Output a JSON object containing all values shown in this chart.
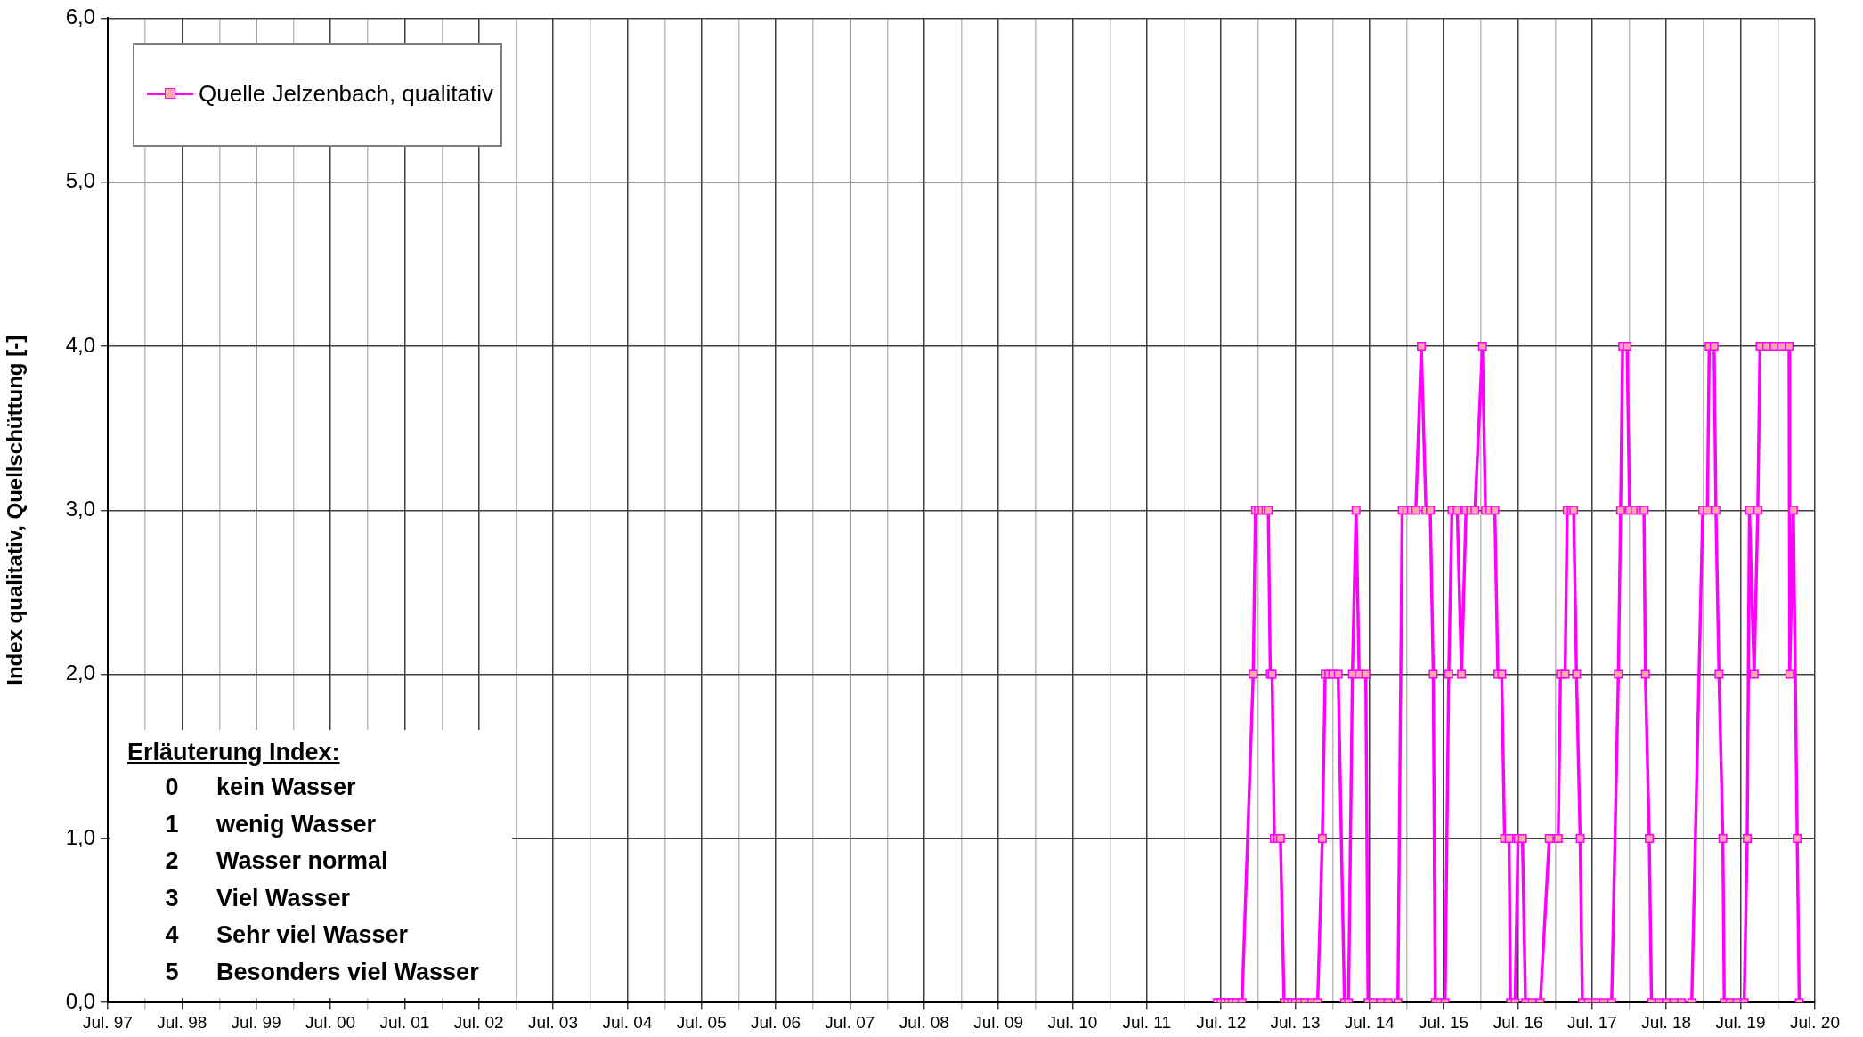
{
  "chart_data": {
    "type": "line",
    "ylabel": "Index qualitativ, Quellschüttung [-]",
    "x": [
      "2012-06-13",
      "2012-07-01",
      "2012-07-19",
      "2012-08-07",
      "2012-08-25",
      "2012-09-13",
      "2012-10-12",
      "2012-12-06",
      "2012-12-17",
      "2013-01-01",
      "2013-01-19",
      "2013-02-07",
      "2013-02-18",
      "2013-02-28",
      "2013-03-09",
      "2013-03-20",
      "2013-04-05",
      "2013-04-19",
      "2013-05-07",
      "2013-05-25",
      "2013-06-13",
      "2013-07-01",
      "2013-07-23",
      "2013-08-18",
      "2013-09-20",
      "2013-10-19",
      "2013-11-11",
      "2013-11-25",
      "2013-12-13",
      "2014-01-01",
      "2014-01-28",
      "2014-02-28",
      "2014-03-20",
      "2014-04-08",
      "2014-04-26",
      "2014-05-11",
      "2014-06-13",
      "2014-06-24",
      "2014-07-19",
      "2014-08-25",
      "2014-10-01",
      "2014-11-18",
      "2014-12-09",
      "2015-01-01",
      "2015-01-23",
      "2015-02-14",
      "2015-03-13",
      "2015-04-05",
      "2015-04-26",
      "2015-05-11",
      "2015-05-21",
      "2015-06-13",
      "2015-07-08",
      "2015-07-26",
      "2015-08-11",
      "2015-09-06",
      "2015-09-27",
      "2015-10-19",
      "2015-11-11",
      "2015-12-02",
      "2016-01-08",
      "2016-01-23",
      "2016-02-14",
      "2016-03-09",
      "2016-03-24",
      "2016-04-12",
      "2016-04-26",
      "2016-05-18",
      "2016-05-25",
      "2016-06-17",
      "2016-07-01",
      "2016-07-23",
      "2016-08-07",
      "2016-09-09",
      "2016-10-19",
      "2016-12-02",
      "2017-01-15",
      "2017-01-26",
      "2017-02-18",
      "2017-02-28",
      "2017-03-20",
      "2017-04-01",
      "2017-04-15",
      "2017-05-03",
      "2017-05-14",
      "2017-06-13",
      "2017-07-19",
      "2017-08-25",
      "2017-10-05",
      "2017-11-07",
      "2017-11-18",
      "2017-11-28",
      "2017-12-20",
      "2018-01-01",
      "2018-01-28",
      "2018-02-25",
      "2018-03-13",
      "2018-03-20",
      "2018-04-08",
      "2018-04-19",
      "2018-05-25",
      "2018-07-01",
      "2018-08-07",
      "2018-09-13",
      "2018-11-03",
      "2018-12-27",
      "2019-01-19",
      "2019-01-28",
      "2019-02-21",
      "2019-03-02",
      "2019-03-17",
      "2019-04-05",
      "2019-04-12",
      "2019-05-11",
      "2019-06-13",
      "2019-07-19",
      "2019-08-03",
      "2019-08-14",
      "2019-09-06",
      "2019-09-24",
      "2019-10-05",
      "2019-11-07",
      "2019-12-13",
      "2020-01-19",
      "2020-02-25",
      "2020-02-28",
      "2020-03-17",
      "2020-04-05",
      "2020-04-15"
    ],
    "series": [
      {
        "name": "Quelle Jelzenbach, qualitativ",
        "color": "#ff00ff",
        "values": [
          0,
          0,
          0,
          0,
          0,
          0,
          0,
          2,
          3,
          3,
          3,
          3,
          3,
          2,
          2,
          1,
          1,
          1,
          0,
          0,
          0,
          0,
          0,
          0,
          0,
          0,
          1,
          2,
          2,
          2,
          2,
          0,
          0,
          2,
          3,
          2,
          2,
          0,
          0,
          0,
          0,
          0,
          3,
          3,
          3,
          3,
          4,
          3,
          3,
          2,
          0,
          0,
          0,
          2,
          3,
          3,
          2,
          3,
          3,
          3,
          4,
          3,
          3,
          3,
          2,
          2,
          1,
          1,
          0,
          0,
          1,
          1,
          0,
          0,
          0,
          1,
          1,
          2,
          2,
          3,
          3,
          3,
          2,
          1,
          0,
          0,
          0,
          0,
          0,
          2,
          3,
          4,
          4,
          3,
          3,
          3,
          3,
          2,
          1,
          0,
          0,
          0,
          0,
          0,
          0,
          3,
          3,
          4,
          4,
          3,
          2,
          1,
          0,
          0,
          0,
          0,
          1,
          3,
          2,
          3,
          4,
          4,
          4,
          4,
          4,
          2,
          3,
          1,
          0
        ]
      }
    ],
    "xlim": [
      "1997-07-01",
      "2020-07-01"
    ],
    "xticks": [
      {
        "value": "1997-07-01",
        "label": "Jul. 97"
      },
      {
        "value": "1998-01-01",
        "label": null
      },
      {
        "value": "1998-07-01",
        "label": "Jul. 98"
      },
      {
        "value": "1999-01-01",
        "label": null
      },
      {
        "value": "1999-07-01",
        "label": "Jul. 99"
      },
      {
        "value": "2000-01-01",
        "label": null
      },
      {
        "value": "2000-07-01",
        "label": "Jul. 00"
      },
      {
        "value": "2001-01-01",
        "label": null
      },
      {
        "value": "2001-07-01",
        "label": "Jul. 01"
      },
      {
        "value": "2002-01-01",
        "label": null
      },
      {
        "value": "2002-07-01",
        "label": "Jul. 02"
      },
      {
        "value": "2003-01-01",
        "label": null
      },
      {
        "value": "2003-07-01",
        "label": "Jul. 03"
      },
      {
        "value": "2004-01-01",
        "label": null
      },
      {
        "value": "2004-07-01",
        "label": "Jul. 04"
      },
      {
        "value": "2005-01-01",
        "label": null
      },
      {
        "value": "2005-07-01",
        "label": "Jul. 05"
      },
      {
        "value": "2006-01-01",
        "label": null
      },
      {
        "value": "2006-07-01",
        "label": "Jul. 06"
      },
      {
        "value": "2007-01-01",
        "label": null
      },
      {
        "value": "2007-07-01",
        "label": "Jul. 07"
      },
      {
        "value": "2008-01-01",
        "label": null
      },
      {
        "value": "2008-07-01",
        "label": "Jul. 08"
      },
      {
        "value": "2009-01-01",
        "label": null
      },
      {
        "value": "2009-07-01",
        "label": "Jul. 09"
      },
      {
        "value": "2010-01-01",
        "label": null
      },
      {
        "value": "2010-07-01",
        "label": "Jul. 10"
      },
      {
        "value": "2011-01-01",
        "label": null
      },
      {
        "value": "2011-07-01",
        "label": "Jul. 11"
      },
      {
        "value": "2012-01-01",
        "label": null
      },
      {
        "value": "2012-07-01",
        "label": "Jul. 12"
      },
      {
        "value": "2013-01-01",
        "label": null
      },
      {
        "value": "2013-07-01",
        "label": "Jul. 13"
      },
      {
        "value": "2014-01-01",
        "label": null
      },
      {
        "value": "2014-07-01",
        "label": "Jul. 14"
      },
      {
        "value": "2015-01-01",
        "label": null
      },
      {
        "value": "2015-07-01",
        "label": "Jul. 15"
      },
      {
        "value": "2016-01-01",
        "label": null
      },
      {
        "value": "2016-07-01",
        "label": "Jul. 16"
      },
      {
        "value": "2017-01-01",
        "label": null
      },
      {
        "value": "2017-07-01",
        "label": "Jul. 17"
      },
      {
        "value": "2018-01-01",
        "label": null
      },
      {
        "value": "2018-07-01",
        "label": "Jul. 18"
      },
      {
        "value": "2019-01-01",
        "label": null
      },
      {
        "value": "2019-07-01",
        "label": "Jul. 19"
      },
      {
        "value": "2020-01-01",
        "label": null
      },
      {
        "value": "2020-07-01",
        "label": "Jul. 20"
      }
    ],
    "ylim": [
      0,
      6
    ],
    "yticks": [
      {
        "value": 0,
        "label": "0,0"
      },
      {
        "value": 1,
        "label": "1,0"
      },
      {
        "value": 2,
        "label": "2,0"
      },
      {
        "value": 3,
        "label": "3,0"
      },
      {
        "value": 4,
        "label": "4,0"
      },
      {
        "value": 5,
        "label": "5,0"
      },
      {
        "value": 6,
        "label": "6,0"
      }
    ],
    "grid": true,
    "legend": "top left",
    "marker": "square",
    "line_style": "solid",
    "annotations": [
      "Erläuterung Index:",
      "0 kein Wasser",
      "1 wenig Wasser",
      "2 Wasser normal",
      "3 Viel Wasser",
      "4 Sehr viel Wasser",
      "5 Besonders viel Wasser"
    ]
  }
}
